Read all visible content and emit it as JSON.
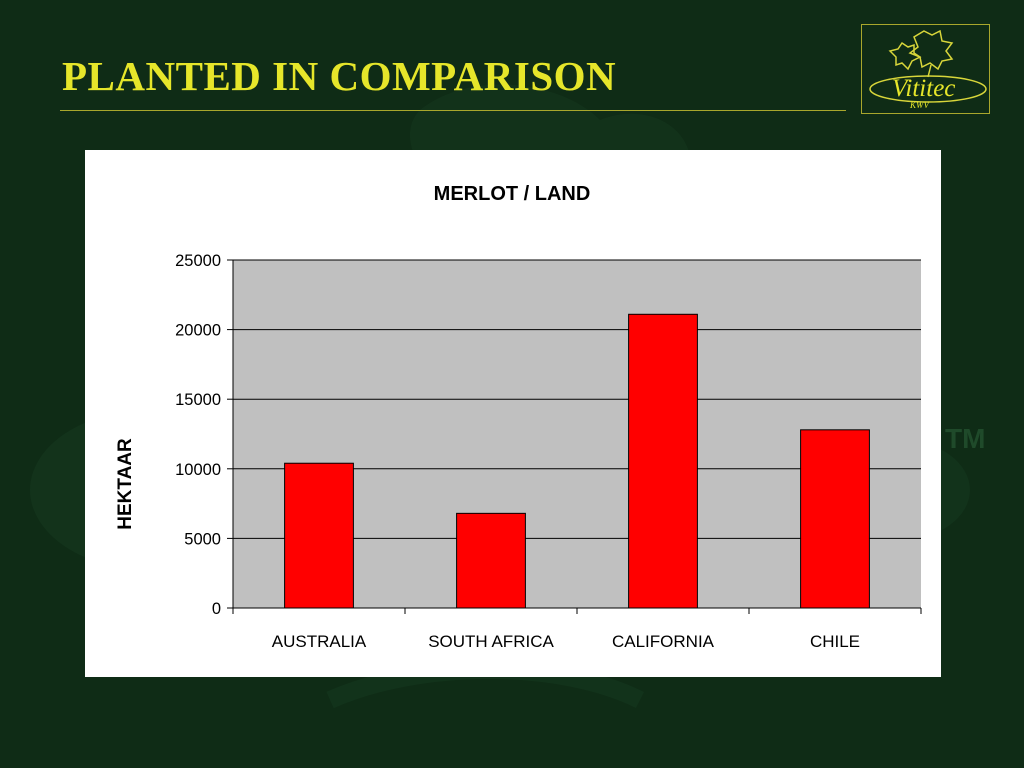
{
  "slide": {
    "title": "PLANTED IN COMPARISON",
    "colors": {
      "background": "#0f2c16",
      "title": "#e6e62a",
      "rule": "#a9a72c"
    }
  },
  "logo": {
    "text": "Vititec",
    "subtext": "KWV",
    "icon": "grape-leaf-icon"
  },
  "chart_data": {
    "type": "bar",
    "title": "MERLOT / LAND",
    "xlabel": "",
    "ylabel": "HEKTAAR",
    "categories": [
      "AUSTRALIA",
      "SOUTH AFRICA",
      "CALIFORNIA",
      "CHILE"
    ],
    "values": [
      10400,
      6800,
      21100,
      12800
    ],
    "ylim": [
      0,
      25000
    ],
    "yticks": [
      0,
      5000,
      10000,
      15000,
      20000,
      25000
    ],
    "grid": true,
    "legend": "none",
    "bar_color": "#ff0000",
    "plot_background": "#c0c0c0"
  }
}
